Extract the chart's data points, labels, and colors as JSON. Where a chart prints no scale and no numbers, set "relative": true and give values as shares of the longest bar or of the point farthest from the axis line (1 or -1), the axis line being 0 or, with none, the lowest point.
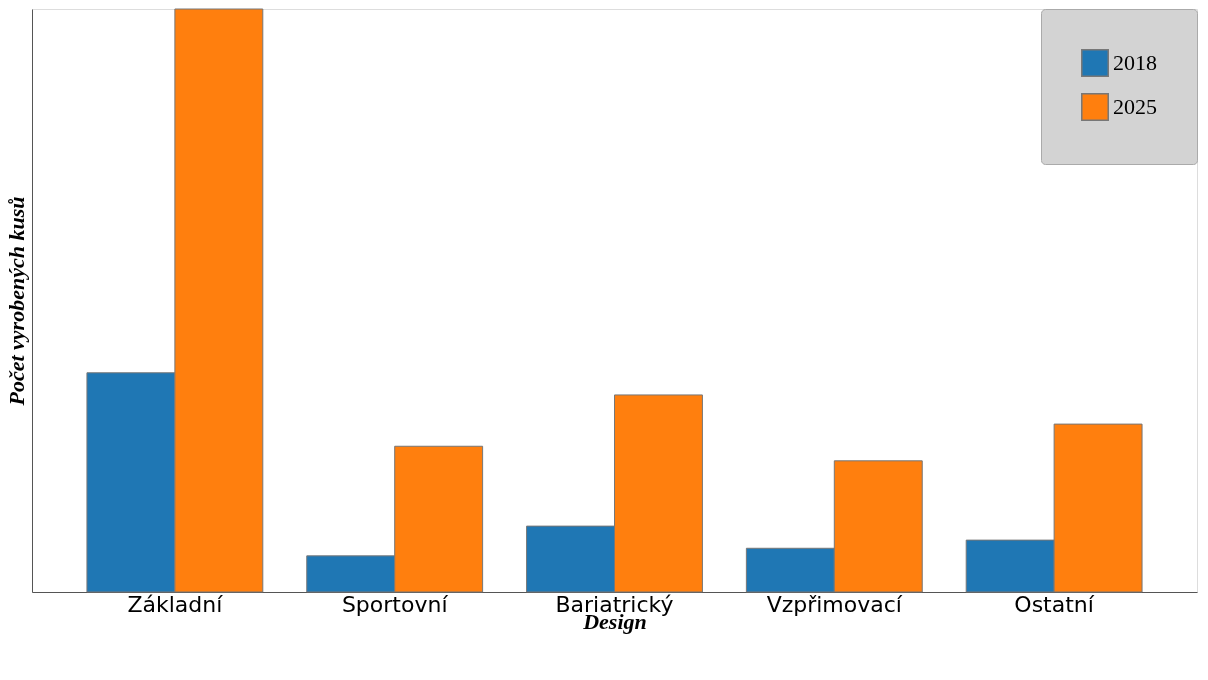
{
  "chart_data": {
    "type": "bar",
    "relative": true,
    "xlabel": "Design",
    "ylabel": "Počet vyrobených kusů",
    "categories": [
      "Základní",
      "Sportovní",
      "Bariatrický",
      "Vzpřimovací",
      "Ostatní"
    ],
    "series": [
      {
        "name": "2018",
        "color": "#1f77b4",
        "values": [
          0.376,
          0.062,
          0.113,
          0.075,
          0.089
        ]
      },
      {
        "name": "2025",
        "color": "#ff7f0e",
        "values": [
          1,
          0.25,
          0.338,
          0.225,
          0.288
        ]
      }
    ],
    "legend": "top right",
    "grid": false
  }
}
